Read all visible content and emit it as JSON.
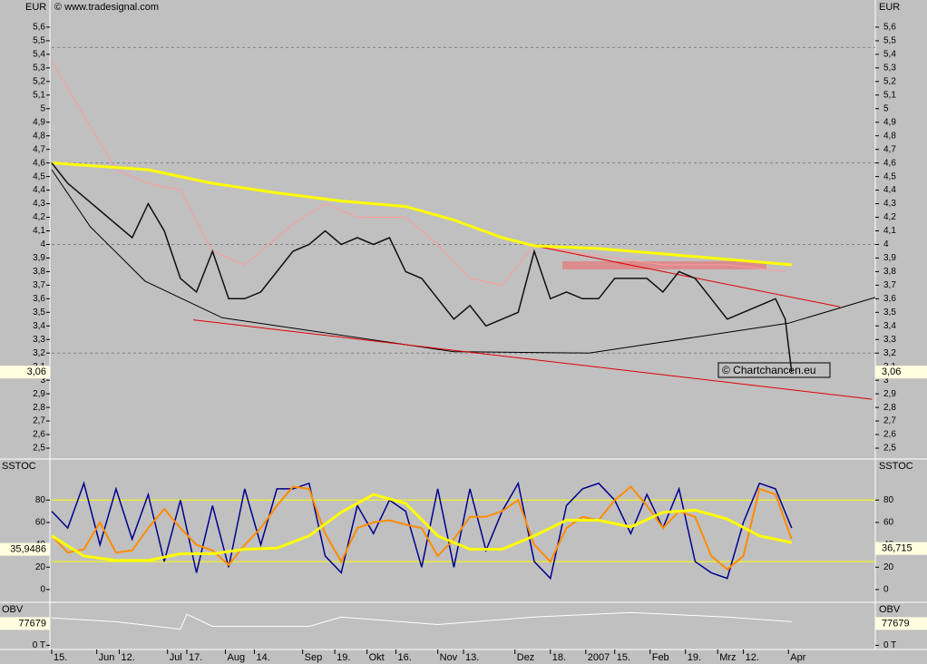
{
  "chart_data": {
    "type": "line",
    "source": "© www.tradesignal.com",
    "watermark": "© Chartchancen.eu",
    "xlim": [
      0,
      256
    ],
    "xticks": [
      {
        "value": 0,
        "label": "15."
      },
      {
        "value": 14,
        "label": "Jun"
      },
      {
        "value": 21,
        "label": "12."
      },
      {
        "value": 36,
        "label": "Jul"
      },
      {
        "value": 42,
        "label": "17."
      },
      {
        "value": 54,
        "label": "Aug"
      },
      {
        "value": 63,
        "label": "14."
      },
      {
        "value": 78,
        "label": "Sep"
      },
      {
        "value": 88,
        "label": "19."
      },
      {
        "value": 98,
        "label": "Okt"
      },
      {
        "value": 107,
        "label": "16."
      },
      {
        "value": 120,
        "label": "Nov"
      },
      {
        "value": 128,
        "label": "13."
      },
      {
        "value": 144,
        "label": "Dez"
      },
      {
        "value": 155,
        "label": "18."
      },
      {
        "value": 166,
        "label": "2007"
      },
      {
        "value": 175,
        "label": "15."
      },
      {
        "value": 186,
        "label": "Feb"
      },
      {
        "value": 197,
        "label": "19."
      },
      {
        "value": 207,
        "label": "Mrz"
      },
      {
        "value": 215,
        "label": "12."
      },
      {
        "value": 229,
        "label": "Apr"
      }
    ],
    "price": {
      "unit": "EUR",
      "ylim": [
        2.42,
        5.8
      ],
      "yticks": [
        {
          "value": 2.5,
          "label": "2,5"
        },
        {
          "value": 2.6,
          "label": "2,6"
        },
        {
          "value": 2.7,
          "label": "2,7"
        },
        {
          "value": 2.8,
          "label": "2,8"
        },
        {
          "value": 2.9,
          "label": "2,9"
        },
        3,
        {
          "value": 3.1,
          "label": "3,1"
        },
        {
          "value": 3.2,
          "label": "3,2"
        },
        {
          "value": 3.3,
          "label": "3,3"
        },
        {
          "value": 3.4,
          "label": "3,4"
        },
        {
          "value": 3.5,
          "label": "3,5"
        },
        {
          "value": 3.6,
          "label": "3,6"
        },
        {
          "value": 3.7,
          "label": "3,7"
        },
        {
          "value": 3.8,
          "label": "3,8"
        },
        {
          "value": 3.9,
          "label": "3,9"
        },
        4,
        {
          "value": 4.1,
          "label": "4,1"
        },
        {
          "value": 4.2,
          "label": "4,2"
        },
        {
          "value": 4.3,
          "label": "4,3"
        },
        {
          "value": 4.4,
          "label": "4,4"
        },
        {
          "value": 4.5,
          "label": "4,5"
        },
        {
          "value": 4.6,
          "label": "4,6"
        },
        {
          "value": 4.7,
          "label": "4,7"
        },
        {
          "value": 4.8,
          "label": "4,8"
        },
        {
          "value": 4.9,
          "label": "4,9"
        },
        5,
        {
          "value": 5.1,
          "label": "5,1"
        },
        {
          "value": 5.2,
          "label": "5,2"
        },
        {
          "value": 5.3,
          "label": "5,3"
        },
        {
          "value": 5.4,
          "label": "5,4"
        },
        {
          "value": 5.5,
          "label": "5,5"
        },
        {
          "value": 5.6,
          "label": "5,6"
        }
      ],
      "hlines": [
        5.45,
        4.6,
        4.0,
        3.2
      ],
      "last": {
        "value": 3.06,
        "label": "3,06"
      },
      "series": [
        {
          "color": "#ff9a9a",
          "width": 1,
          "x": [
            0,
            10,
            20,
            30,
            40,
            50,
            60,
            75,
            85,
            95,
            110,
            120,
            130,
            140,
            150,
            160,
            175,
            190,
            210,
            228
          ],
          "values": [
            5.35,
            4.95,
            4.55,
            4.45,
            4.4,
            3.95,
            3.85,
            4.15,
            4.3,
            4.2,
            4.2,
            4.0,
            3.75,
            3.7,
            4.0,
            3.95,
            3.9,
            3.85,
            3.85,
            3.8
          ]
        },
        {
          "color": "#000000",
          "width": 1,
          "x": [
            0,
            12,
            29,
            53,
            125,
            167,
            229,
            256
          ],
          "values": [
            4.55,
            4.13,
            3.73,
            3.46,
            3.21,
            3.2,
            3.42,
            3.61
          ]
        },
        {
          "color": "#e00000",
          "width": 1,
          "x": [
            44,
            255
          ],
          "values": [
            3.445,
            2.86
          ]
        },
        {
          "color": "#e00000",
          "width": 1,
          "x": [
            150,
            245
          ],
          "values": [
            3.99,
            3.54
          ]
        },
        {
          "color": "#ffff00",
          "width": 3,
          "x": [
            0,
            30,
            50,
            70,
            90,
            110,
            125,
            140,
            150,
            170,
            190,
            210,
            230
          ],
          "values": [
            4.6,
            4.55,
            4.45,
            4.38,
            4.32,
            4.28,
            4.18,
            4.05,
            3.99,
            3.97,
            3.93,
            3.89,
            3.85
          ]
        },
        {
          "color": "#101010",
          "width": 1.5,
          "x": [
            0,
            5,
            10,
            15,
            20,
            25,
            30,
            35,
            40,
            45,
            50,
            55,
            60,
            65,
            70,
            75,
            80,
            85,
            90,
            95,
            100,
            105,
            110,
            115,
            120,
            125,
            130,
            135,
            140,
            145,
            150,
            155,
            160,
            165,
            170,
            175,
            180,
            185,
            190,
            195,
            200,
            205,
            210,
            215,
            220,
            225,
            228,
            230
          ],
          "values": [
            4.6,
            4.45,
            4.35,
            4.25,
            4.15,
            4.05,
            4.3,
            4.1,
            3.75,
            3.65,
            3.95,
            3.6,
            3.6,
            3.65,
            3.8,
            3.95,
            4.0,
            4.1,
            4.0,
            4.05,
            4.0,
            4.05,
            3.8,
            3.75,
            3.6,
            3.45,
            3.55,
            3.4,
            3.45,
            3.5,
            3.95,
            3.6,
            3.65,
            3.6,
            3.6,
            3.75,
            3.75,
            3.75,
            3.65,
            3.8,
            3.75,
            3.6,
            3.45,
            3.5,
            3.55,
            3.6,
            3.45,
            3.06
          ]
        }
      ]
    },
    "stoch": {
      "label": "SSTOC",
      "ylim": [
        -10.6,
        115.9
      ],
      "yticks": [
        0,
        20,
        40,
        60,
        80
      ],
      "levels": [
        80,
        25
      ],
      "last_left": {
        "value": 35.9486,
        "label": "35,9486"
      },
      "last_right": {
        "value": 36.715,
        "label": "36,715"
      },
      "series": [
        {
          "color": "#00008b",
          "width": 1.5,
          "x": [
            0,
            5,
            10,
            15,
            20,
            25,
            30,
            35,
            40,
            45,
            50,
            55,
            60,
            65,
            70,
            75,
            80,
            85,
            90,
            95,
            100,
            105,
            110,
            115,
            120,
            125,
            130,
            135,
            140,
            145,
            150,
            155,
            160,
            165,
            170,
            175,
            180,
            185,
            190,
            195,
            200,
            205,
            210,
            215,
            220,
            225,
            230
          ],
          "values": [
            70,
            55,
            95,
            40,
            90,
            45,
            85,
            25,
            80,
            15,
            75,
            20,
            90,
            40,
            90,
            90,
            95,
            30,
            15,
            75,
            50,
            80,
            70,
            20,
            90,
            20,
            90,
            35,
            70,
            95,
            25,
            10,
            75,
            90,
            95,
            80,
            50,
            85,
            55,
            90,
            25,
            15,
            10,
            60,
            95,
            90,
            55
          ]
        },
        {
          "color": "#ff8c00",
          "width": 2,
          "x": [
            0,
            5,
            10,
            15,
            20,
            25,
            30,
            35,
            40,
            45,
            50,
            55,
            60,
            65,
            70,
            75,
            80,
            85,
            90,
            95,
            100,
            105,
            110,
            115,
            120,
            125,
            130,
            135,
            140,
            145,
            150,
            155,
            160,
            165,
            170,
            175,
            180,
            185,
            190,
            195,
            200,
            205,
            210,
            215,
            220,
            225,
            230
          ],
          "values": [
            48,
            33,
            36,
            60,
            33,
            35,
            55,
            72,
            55,
            40,
            35,
            22,
            40,
            55,
            75,
            92,
            90,
            50,
            25,
            55,
            60,
            62,
            58,
            55,
            30,
            45,
            65,
            65,
            70,
            80,
            40,
            25,
            55,
            65,
            62,
            80,
            92,
            75,
            55,
            70,
            65,
            30,
            18,
            30,
            90,
            85,
            45
          ]
        },
        {
          "color": "#ffff00",
          "width": 3,
          "x": [
            0,
            10,
            20,
            30,
            40,
            50,
            60,
            70,
            80,
            90,
            100,
            110,
            120,
            130,
            140,
            150,
            160,
            170,
            180,
            190,
            200,
            210,
            220,
            230
          ],
          "values": [
            48,
            30,
            26,
            26,
            32,
            32,
            36,
            37,
            48,
            69,
            85,
            77,
            48,
            36,
            36,
            48,
            62,
            62,
            56,
            69,
            71,
            63,
            48,
            42
          ]
        }
      ]
    },
    "obv": {
      "label": "OBV",
      "ylim": [
        -15000,
        150000
      ],
      "yticks": [
        {
          "value": 0,
          "label": "0 T"
        }
      ],
      "last": 77679,
      "series": [
        {
          "color": "#ffffff",
          "width": 1,
          "x": [
            0,
            20,
            40,
            42,
            50,
            80,
            90,
            120,
            150,
            180,
            210,
            230
          ],
          "values": [
            97200,
            84000,
            57600,
            110400,
            67500,
            67500,
            100500,
            74100,
            100500,
            117000,
            100500,
            84000
          ]
        }
      ]
    }
  }
}
